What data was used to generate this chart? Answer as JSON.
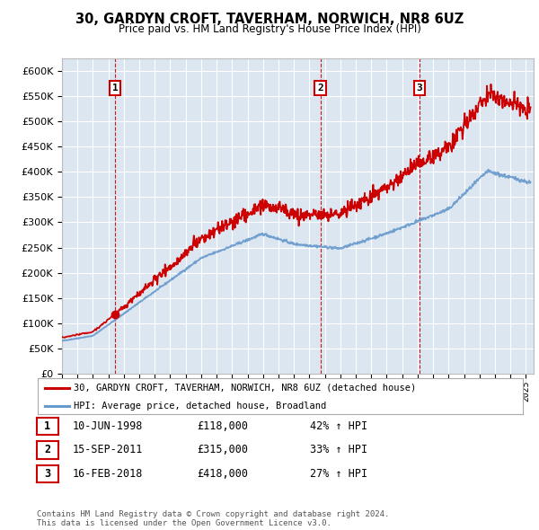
{
  "title": "30, GARDYN CROFT, TAVERHAM, NORWICH, NR8 6UZ",
  "subtitle": "Price paid vs. HM Land Registry's House Price Index (HPI)",
  "ylim": [
    0,
    625000
  ],
  "yticks": [
    0,
    50000,
    100000,
    150000,
    200000,
    250000,
    300000,
    350000,
    400000,
    450000,
    500000,
    550000,
    600000
  ],
  "plot_bg": "#dce6f1",
  "sale_dates": [
    1998.44,
    2011.71,
    2018.12
  ],
  "sale_prices": [
    118000,
    315000,
    418000
  ],
  "sale_labels": [
    "1",
    "2",
    "3"
  ],
  "legend_entries": [
    "30, GARDYN CROFT, TAVERHAM, NORWICH, NR8 6UZ (detached house)",
    "HPI: Average price, detached house, Broadland"
  ],
  "table_rows": [
    [
      "1",
      "10-JUN-1998",
      "£118,000",
      "42% ↑ HPI"
    ],
    [
      "2",
      "15-SEP-2011",
      "£315,000",
      "33% ↑ HPI"
    ],
    [
      "3",
      "16-FEB-2018",
      "£418,000",
      "27% ↑ HPI"
    ]
  ],
  "footer": "Contains HM Land Registry data © Crown copyright and database right 2024.\nThis data is licensed under the Open Government Licence v3.0.",
  "line_color_red": "#cc0000",
  "line_color_blue": "#6699cc",
  "xmin": 1995.0,
  "xmax": 2025.5
}
